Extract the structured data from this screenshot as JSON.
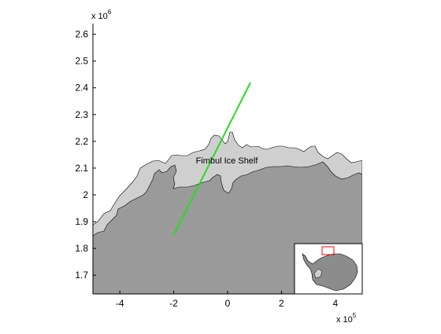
{
  "figure": {
    "type": "map",
    "y_exponent_label": "x 10",
    "y_exponent_power": "6",
    "x_exponent_label": "x 10",
    "x_exponent_power": "5",
    "place_label": "Fimbul Ice Shelf"
  },
  "axes": {
    "xlim": [
      -500000,
      500000
    ],
    "ylim": [
      1630000,
      2640000
    ],
    "x_ticks": [
      -400000,
      -200000,
      0,
      200000,
      400000
    ],
    "x_tick_labels": [
      "-4",
      "-2",
      "0",
      "2",
      "4"
    ],
    "y_ticks": [
      1700000,
      1800000,
      1900000,
      2000000,
      2100000,
      2200000,
      2300000,
      2400000,
      2500000,
      2600000
    ],
    "y_tick_labels": [
      "1.7",
      "1.8",
      "1.9",
      "2",
      "2.1",
      "2.2",
      "2.3",
      "2.4",
      "2.5",
      "2.6"
    ],
    "grid": false
  },
  "layers": {
    "grounded_ice": {
      "name": "grounded ice",
      "color": "#9a9a9a"
    },
    "ice_shelf": {
      "name": "ice shelf",
      "color": "#cfcfcf"
    },
    "ocean": {
      "name": "ocean",
      "color": "#ffffff"
    }
  },
  "profile_line": {
    "color": "#22dd22",
    "start": {
      "x": -200000,
      "y": 1850000
    },
    "end": {
      "x": 85000,
      "y": 2420000
    }
  },
  "inset": {
    "description_icon": "antarctica-locator-icon",
    "highlight_color": "#ff0000"
  }
}
